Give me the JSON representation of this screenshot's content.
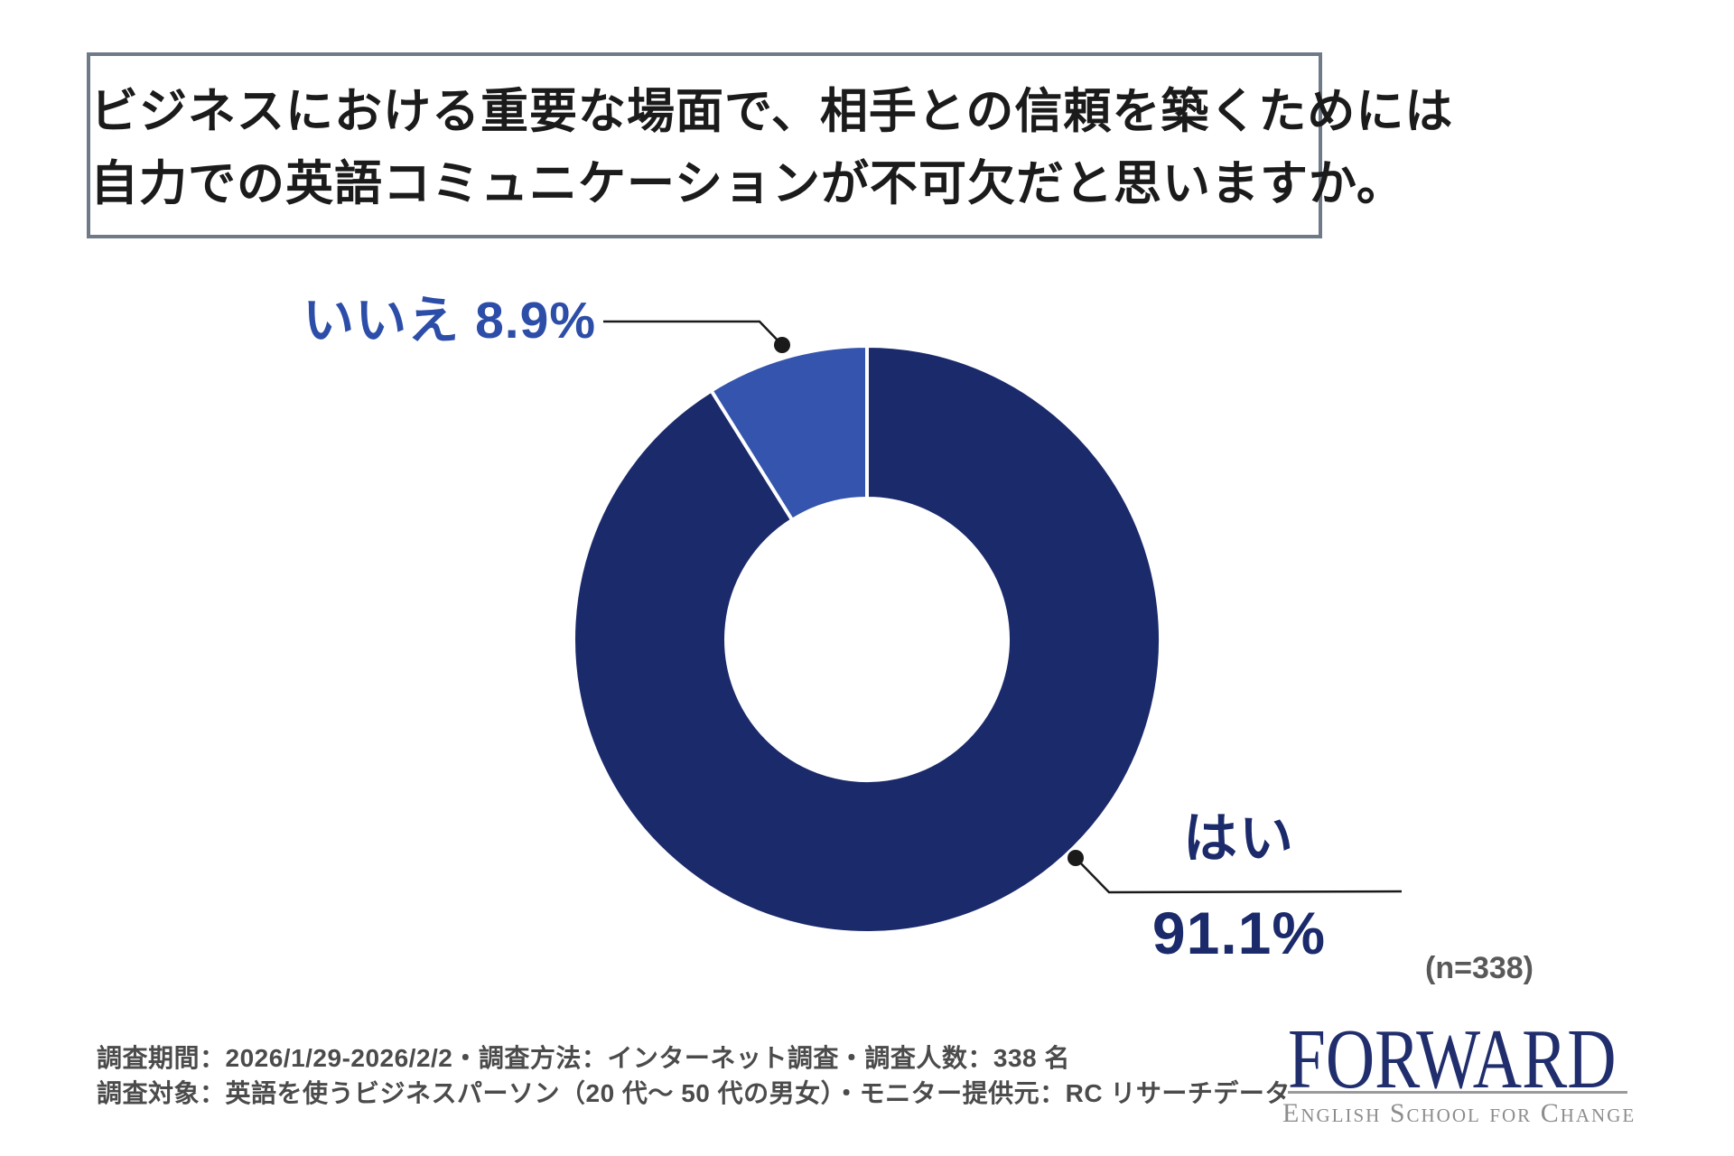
{
  "title": {
    "line1": "ビジネスにおける重要な場面で、相手との信頼を築くためには",
    "line2": "自力での英語コミュニケーションが不可欠だと思いますか。"
  },
  "chart_data": {
    "type": "pie",
    "subtype": "donut",
    "title": "ビジネスにおける重要な場面で、相手との信頼を築くためには自力での英語コミュニケーションが不可欠だと思いますか。",
    "sample_size_label": "(n=338)",
    "start_angle_deg": 0,
    "direction": "clockwise",
    "hole_ratio": 0.48,
    "gap_color": "#ffffff",
    "leader_line_color": "#1a1a1a",
    "segments": [
      {
        "label": "はい",
        "value": 91.1,
        "display": "91.1%",
        "color": "#1b2a6b",
        "label_color": "#1b2a6b"
      },
      {
        "label": "いいえ",
        "value": 8.9,
        "display": "8.9%",
        "color": "#3454ad",
        "label_color": "#2d4ea8"
      }
    ]
  },
  "footer": {
    "line1": "調査期間：2026/1/29-2026/2/2・調査方法：インターネット調査・調査人数：338 名",
    "line2": "調査対象：英語を使うビジネスパーソン（20 代～ 50 代の男女）・モニター提供元：RC リサーチデータ"
  },
  "logo": {
    "wordmark": "FORWARD",
    "tagline": "English School for Change"
  }
}
